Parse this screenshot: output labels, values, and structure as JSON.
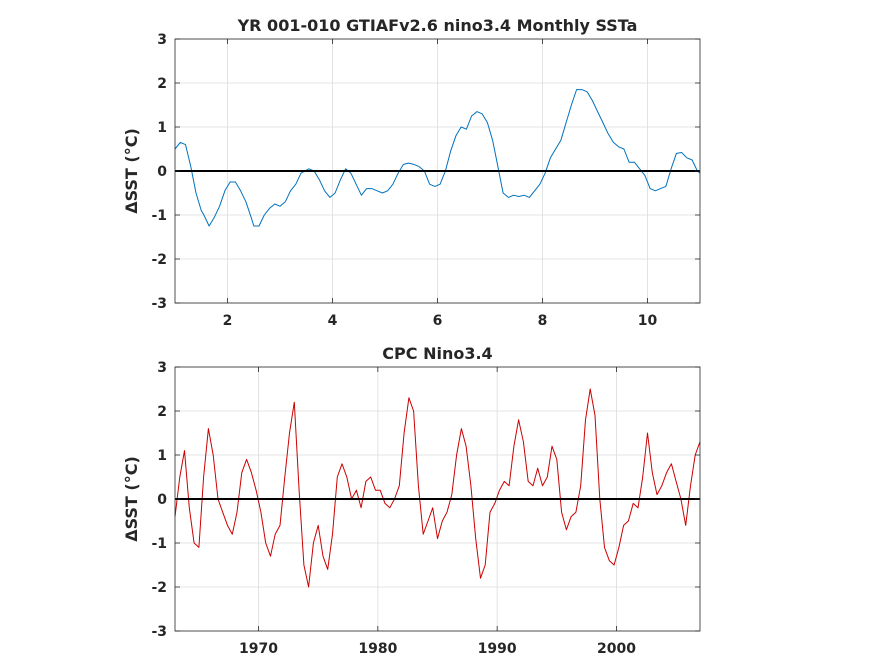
{
  "chart_data": [
    {
      "type": "line",
      "title": "YR 001-010 GTIAFv2.6 nino3.4 Monthly SSTa",
      "ylabel": "ΔSST (°C)",
      "xlim": [
        1,
        11
      ],
      "ylim": [
        -3,
        3
      ],
      "xticks": [
        2,
        4,
        6,
        8,
        10
      ],
      "xtick_labels": [
        "2",
        "4",
        "6",
        "8",
        "10"
      ],
      "yticks": [
        -3,
        -2,
        -1,
        0,
        1,
        2,
        3
      ],
      "ytick_labels": [
        "-3",
        "-2",
        "-1",
        "0",
        "1",
        "2",
        "3"
      ],
      "grid": true,
      "reference_line_y": 0,
      "series": [
        {
          "color": "#0072bd",
          "x": [
            1.0,
            1.1,
            1.2,
            1.3,
            1.4,
            1.5,
            1.55,
            1.65,
            1.75,
            1.85,
            1.95,
            2.05,
            2.15,
            2.25,
            2.35,
            2.45,
            2.5,
            2.6,
            2.7,
            2.8,
            2.9,
            3.0,
            3.1,
            3.2,
            3.3,
            3.4,
            3.55,
            3.65,
            3.75,
            3.85,
            3.95,
            4.05,
            4.15,
            4.25,
            4.35,
            4.45,
            4.55,
            4.65,
            4.75,
            4.85,
            4.95,
            5.05,
            5.15,
            5.25,
            5.35,
            5.45,
            5.55,
            5.65,
            5.75,
            5.85,
            5.95,
            6.05,
            6.15,
            6.25,
            6.35,
            6.45,
            6.55,
            6.65,
            6.75,
            6.85,
            6.95,
            7.05,
            7.15,
            7.25,
            7.35,
            7.45,
            7.55,
            7.65,
            7.75,
            7.85,
            7.95,
            8.05,
            8.15,
            8.25,
            8.35,
            8.45,
            8.55,
            8.65,
            8.75,
            8.85,
            8.95,
            9.05,
            9.15,
            9.25,
            9.35,
            9.45,
            9.55,
            9.65,
            9.75,
            9.85,
            9.95,
            10.05,
            10.15,
            10.25,
            10.35,
            10.45,
            10.55,
            10.65,
            10.75,
            10.85,
            10.95,
            11.0
          ],
          "y": [
            0.5,
            0.65,
            0.6,
            0.1,
            -0.5,
            -0.9,
            -1.0,
            -1.25,
            -1.05,
            -0.8,
            -0.45,
            -0.25,
            -0.25,
            -0.45,
            -0.7,
            -1.05,
            -1.25,
            -1.25,
            -1.0,
            -0.85,
            -0.75,
            -0.8,
            -0.7,
            -0.45,
            -0.3,
            -0.05,
            0.05,
            0.0,
            -0.2,
            -0.45,
            -0.6,
            -0.5,
            -0.2,
            0.05,
            -0.05,
            -0.3,
            -0.55,
            -0.4,
            -0.4,
            -0.45,
            -0.5,
            -0.45,
            -0.3,
            -0.05,
            0.15,
            0.18,
            0.15,
            0.1,
            0.0,
            -0.3,
            -0.35,
            -0.3,
            0.0,
            0.45,
            0.8,
            1.0,
            0.95,
            1.25,
            1.35,
            1.3,
            1.1,
            0.7,
            0.1,
            -0.5,
            -0.6,
            -0.55,
            -0.58,
            -0.55,
            -0.6,
            -0.45,
            -0.3,
            -0.05,
            0.3,
            0.5,
            0.7,
            1.1,
            1.5,
            1.85,
            1.85,
            1.8,
            1.6,
            1.35,
            1.1,
            0.85,
            0.65,
            0.55,
            0.5,
            0.2,
            0.2,
            0.05,
            -0.1,
            -0.4,
            -0.45,
            -0.4,
            -0.35,
            0.05,
            0.4,
            0.42,
            0.3,
            0.25,
            0.0,
            -0.05
          ]
        }
      ]
    },
    {
      "type": "line",
      "title": "CPC Nino3.4",
      "ylabel": "ΔSST (°C)",
      "xlim": [
        1963,
        2007
      ],
      "ylim": [
        -3,
        3
      ],
      "xticks": [
        1970,
        1980,
        1990,
        2000
      ],
      "xtick_labels": [
        "1970",
        "1980",
        "1990",
        "2000"
      ],
      "yticks": [
        -3,
        -2,
        -1,
        0,
        1,
        2,
        3
      ],
      "ytick_labels": [
        "-3",
        "-2",
        "-1",
        "0",
        "1",
        "2",
        "3"
      ],
      "grid": true,
      "reference_line_y": 0,
      "series": [
        {
          "color": "#cc0000",
          "x": [
            1963.0,
            1963.4,
            1963.8,
            1964.2,
            1964.6,
            1965.0,
            1965.4,
            1965.8,
            1966.2,
            1966.6,
            1967.0,
            1967.4,
            1967.8,
            1968.2,
            1968.6,
            1969.0,
            1969.4,
            1969.8,
            1970.2,
            1970.6,
            1971.0,
            1971.4,
            1971.8,
            1972.2,
            1972.6,
            1973.0,
            1973.4,
            1973.8,
            1974.2,
            1974.6,
            1975.0,
            1975.4,
            1975.8,
            1976.2,
            1976.6,
            1977.0,
            1977.4,
            1977.8,
            1978.2,
            1978.6,
            1979.0,
            1979.4,
            1979.8,
            1980.2,
            1980.6,
            1981.0,
            1981.4,
            1981.8,
            1982.2,
            1982.6,
            1983.0,
            1983.4,
            1983.8,
            1984.2,
            1984.6,
            1985.0,
            1985.4,
            1985.8,
            1986.2,
            1986.6,
            1987.0,
            1987.4,
            1987.8,
            1988.2,
            1988.6,
            1989.0,
            1989.4,
            1989.8,
            1990.2,
            1990.6,
            1991.0,
            1991.4,
            1991.8,
            1992.2,
            1992.6,
            1993.0,
            1993.4,
            1993.8,
            1994.2,
            1994.6,
            1995.0,
            1995.4,
            1995.8,
            1996.2,
            1996.6,
            1997.0,
            1997.4,
            1997.8,
            1998.2,
            1998.6,
            1999.0,
            1999.4,
            1999.8,
            2000.2,
            2000.6,
            2001.0,
            2001.4,
            2001.8,
            2002.2,
            2002.6,
            2003.0,
            2003.4,
            2003.8,
            2004.2,
            2004.6,
            2005.0,
            2005.4,
            2005.8,
            2006.2,
            2006.6,
            2007.0
          ],
          "y": [
            -0.4,
            0.5,
            1.1,
            -0.2,
            -1.0,
            -1.1,
            0.5,
            1.6,
            1.0,
            0.0,
            -0.3,
            -0.6,
            -0.8,
            -0.3,
            0.6,
            0.9,
            0.6,
            0.2,
            -0.3,
            -1.0,
            -1.3,
            -0.8,
            -0.6,
            0.5,
            1.5,
            2.2,
            0.2,
            -1.5,
            -2.0,
            -1.0,
            -0.6,
            -1.3,
            -1.6,
            -0.8,
            0.5,
            0.8,
            0.5,
            0.0,
            0.2,
            -0.2,
            0.4,
            0.5,
            0.2,
            0.2,
            -0.1,
            -0.2,
            0.0,
            0.3,
            1.5,
            2.3,
            2.0,
            0.3,
            -0.8,
            -0.5,
            -0.2,
            -0.9,
            -0.5,
            -0.3,
            0.1,
            1.0,
            1.6,
            1.2,
            0.3,
            -0.9,
            -1.8,
            -1.5,
            -0.3,
            -0.1,
            0.2,
            0.4,
            0.3,
            1.2,
            1.8,
            1.3,
            0.4,
            0.3,
            0.7,
            0.3,
            0.5,
            1.2,
            0.9,
            -0.3,
            -0.7,
            -0.4,
            -0.3,
            0.3,
            1.8,
            2.5,
            1.9,
            0.0,
            -1.1,
            -1.4,
            -1.5,
            -1.1,
            -0.6,
            -0.5,
            -0.1,
            -0.2,
            0.5,
            1.5,
            0.6,
            0.1,
            0.3,
            0.6,
            0.8,
            0.4,
            0.0,
            -0.6,
            0.3,
            1.0,
            1.3
          ]
        }
      ]
    }
  ]
}
